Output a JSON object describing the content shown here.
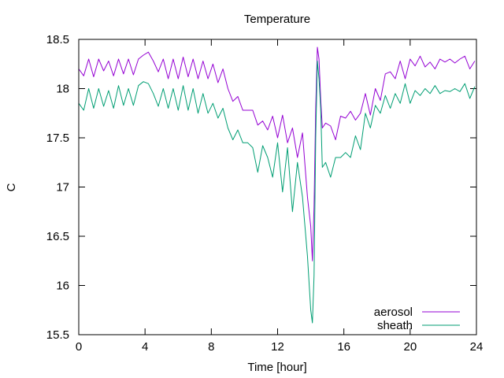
{
  "chart_data": {
    "type": "line",
    "title": "Temperature",
    "xlabel": "Time [hour]",
    "ylabel": "C",
    "xlim": [
      0,
      24
    ],
    "ylim": [
      15.5,
      18.5
    ],
    "xticks": [
      "0",
      "4",
      "8",
      "12",
      "16",
      "20",
      "24"
    ],
    "xtick_values": [
      0,
      4,
      8,
      12,
      16,
      20,
      24
    ],
    "yticks": [
      "15.5",
      "16",
      "16.5",
      "17",
      "17.5",
      "18",
      "18.5"
    ],
    "ytick_values": [
      15.5,
      16,
      16.5,
      17,
      17.5,
      18,
      18.5
    ],
    "grid": false,
    "legend_position": "bottom-right",
    "series": [
      {
        "name": "aerosol",
        "color": "#9400d3",
        "x": [
          0,
          0.3,
          0.6,
          0.9,
          1.2,
          1.5,
          1.8,
          2.1,
          2.4,
          2.7,
          3.0,
          3.3,
          3.6,
          3.9,
          4.2,
          4.5,
          4.8,
          5.1,
          5.4,
          5.7,
          6.0,
          6.3,
          6.6,
          6.9,
          7.2,
          7.5,
          7.8,
          8.1,
          8.4,
          8.7,
          9.0,
          9.3,
          9.6,
          9.9,
          10.2,
          10.5,
          10.8,
          11.1,
          11.4,
          11.7,
          12.0,
          12.3,
          12.6,
          12.9,
          13.2,
          13.5,
          13.8,
          14.0,
          14.1,
          14.2,
          14.3,
          14.4,
          14.5,
          14.6,
          14.7,
          14.9,
          15.2,
          15.5,
          15.8,
          16.1,
          16.4,
          16.7,
          17.0,
          17.3,
          17.6,
          17.9,
          18.2,
          18.5,
          18.8,
          19.1,
          19.4,
          19.7,
          20.0,
          20.3,
          20.6,
          20.9,
          21.2,
          21.5,
          21.8,
          22.1,
          22.4,
          22.7,
          23.0,
          23.3,
          23.6,
          23.9
        ],
        "y": [
          18.2,
          18.13,
          18.3,
          18.12,
          18.3,
          18.18,
          18.28,
          18.13,
          18.3,
          18.15,
          18.3,
          18.14,
          18.3,
          18.34,
          18.37,
          18.28,
          18.17,
          18.3,
          18.1,
          18.3,
          18.1,
          18.32,
          18.12,
          18.3,
          18.1,
          18.28,
          18.1,
          18.25,
          18.06,
          18.2,
          18.0,
          17.87,
          17.92,
          17.78,
          17.78,
          17.78,
          17.63,
          17.67,
          17.58,
          17.72,
          17.5,
          17.73,
          17.45,
          17.6,
          17.3,
          17.55,
          16.9,
          16.6,
          16.25,
          16.8,
          17.8,
          18.42,
          18.3,
          17.9,
          17.6,
          17.65,
          17.62,
          17.48,
          17.72,
          17.7,
          17.77,
          17.68,
          17.75,
          17.95,
          17.73,
          18.0,
          17.88,
          18.15,
          18.17,
          18.1,
          18.28,
          18.1,
          18.3,
          18.23,
          18.33,
          18.22,
          18.27,
          18.2,
          18.3,
          18.27,
          18.3,
          18.26,
          18.3,
          18.33,
          18.2,
          18.28
        ]
      },
      {
        "name": "sheath",
        "color": "#009e73",
        "x": [
          0,
          0.3,
          0.6,
          0.9,
          1.2,
          1.5,
          1.8,
          2.1,
          2.4,
          2.7,
          3.0,
          3.3,
          3.6,
          3.9,
          4.2,
          4.5,
          4.8,
          5.1,
          5.4,
          5.7,
          6.0,
          6.3,
          6.6,
          6.9,
          7.2,
          7.5,
          7.8,
          8.1,
          8.4,
          8.7,
          9.0,
          9.3,
          9.6,
          9.9,
          10.2,
          10.5,
          10.8,
          11.1,
          11.4,
          11.7,
          12.0,
          12.3,
          12.6,
          12.9,
          13.2,
          13.5,
          13.8,
          14.0,
          14.1,
          14.2,
          14.3,
          14.4,
          14.5,
          14.6,
          14.7,
          14.9,
          15.2,
          15.5,
          15.8,
          16.1,
          16.4,
          16.7,
          17.0,
          17.3,
          17.6,
          17.9,
          18.2,
          18.5,
          18.8,
          19.1,
          19.4,
          19.7,
          20.0,
          20.3,
          20.6,
          20.9,
          21.2,
          21.5,
          21.8,
          22.1,
          22.4,
          22.7,
          23.0,
          23.3,
          23.6,
          23.9
        ],
        "y": [
          17.85,
          17.78,
          18.0,
          17.8,
          18.0,
          17.82,
          17.98,
          17.8,
          18.03,
          17.83,
          18.0,
          17.83,
          18.03,
          18.07,
          18.05,
          17.95,
          17.82,
          18.0,
          17.8,
          18.0,
          17.78,
          18.03,
          17.78,
          18.0,
          17.75,
          17.95,
          17.75,
          17.85,
          17.7,
          17.8,
          17.6,
          17.48,
          17.58,
          17.45,
          17.45,
          17.4,
          17.15,
          17.42,
          17.3,
          17.1,
          17.45,
          16.95,
          17.4,
          16.75,
          17.25,
          16.9,
          16.3,
          15.75,
          15.62,
          16.1,
          17.5,
          18.28,
          18.1,
          17.8,
          17.2,
          17.25,
          17.1,
          17.3,
          17.3,
          17.35,
          17.3,
          17.52,
          17.38,
          17.75,
          17.6,
          17.83,
          17.75,
          17.93,
          17.8,
          17.95,
          17.85,
          18.05,
          17.85,
          17.98,
          17.93,
          18.0,
          17.95,
          18.03,
          17.95,
          17.98,
          17.97,
          18.0,
          17.97,
          18.05,
          17.9,
          18.02
        ]
      }
    ]
  }
}
